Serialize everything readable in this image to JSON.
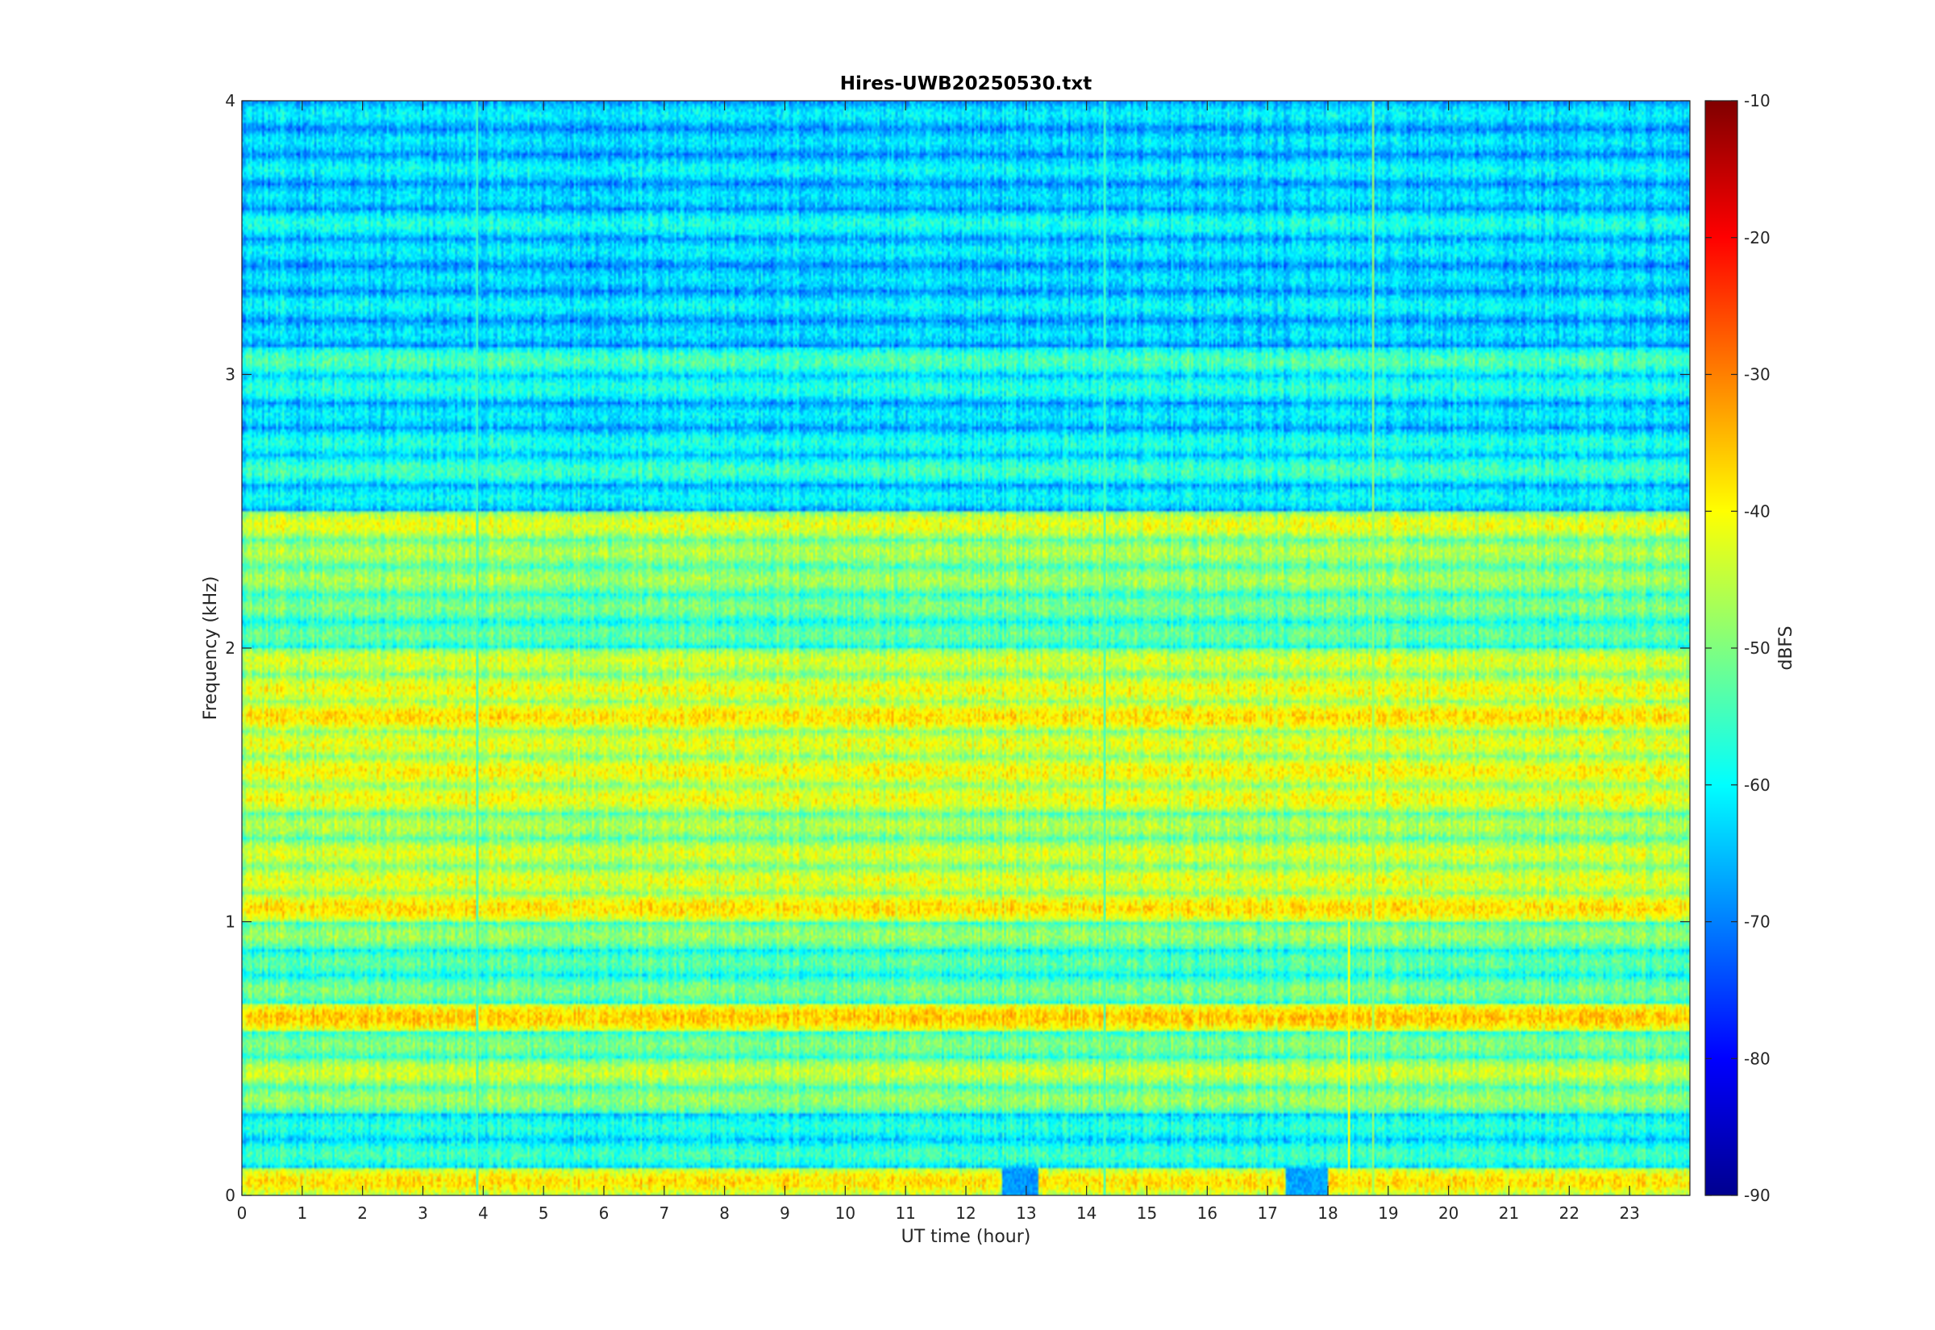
{
  "chart_data": {
    "type": "heatmap",
    "title": "Hires-UWB20250530.txt",
    "xlabel": "UT time (hour)",
    "ylabel": "Frequency (kHz)",
    "xlim": [
      0,
      24
    ],
    "ylim": [
      0,
      4
    ],
    "x_ticks": [
      "0",
      "1",
      "2",
      "3",
      "4",
      "5",
      "6",
      "7",
      "8",
      "9",
      "10",
      "11",
      "12",
      "13",
      "14",
      "15",
      "16",
      "17",
      "18",
      "19",
      "20",
      "21",
      "22",
      "23"
    ],
    "y_ticks": [
      "0",
      "1",
      "2",
      "3",
      "4"
    ],
    "colorbar": {
      "label": "dBFS",
      "range": [
        -90,
        -10
      ],
      "ticks": [
        "-10",
        "-20",
        "-30",
        "-40",
        "-50",
        "-60",
        "-70",
        "-80",
        "-90"
      ],
      "colormap": "jet"
    },
    "bands": [
      {
        "f": 0.05,
        "level": -38
      },
      {
        "f": 0.15,
        "level": -55
      },
      {
        "f": 0.25,
        "level": -57
      },
      {
        "f": 0.35,
        "level": -48
      },
      {
        "f": 0.45,
        "level": -44
      },
      {
        "f": 0.55,
        "level": -50
      },
      {
        "f": 0.65,
        "level": -36
      },
      {
        "f": 0.75,
        "level": -50
      },
      {
        "f": 0.85,
        "level": -53
      },
      {
        "f": 0.95,
        "level": -48
      },
      {
        "f": 1.05,
        "level": -38
      },
      {
        "f": 1.15,
        "level": -42
      },
      {
        "f": 1.25,
        "level": -43
      },
      {
        "f": 1.35,
        "level": -46
      },
      {
        "f": 1.45,
        "level": -41
      },
      {
        "f": 1.55,
        "level": -40
      },
      {
        "f": 1.65,
        "level": -42
      },
      {
        "f": 1.75,
        "level": -38
      },
      {
        "f": 1.85,
        "level": -41
      },
      {
        "f": 1.95,
        "level": -43
      },
      {
        "f": 2.05,
        "level": -52
      },
      {
        "f": 2.15,
        "level": -50
      },
      {
        "f": 2.25,
        "level": -47
      },
      {
        "f": 2.35,
        "level": -46
      },
      {
        "f": 2.45,
        "level": -42
      },
      {
        "f": 2.55,
        "level": -60
      },
      {
        "f": 2.65,
        "level": -55
      },
      {
        "f": 2.75,
        "level": -58
      },
      {
        "f": 2.85,
        "level": -61
      },
      {
        "f": 2.95,
        "level": -57
      },
      {
        "f": 3.05,
        "level": -54
      },
      {
        "f": 3.15,
        "level": -62
      },
      {
        "f": 3.25,
        "level": -60
      },
      {
        "f": 3.35,
        "level": -62
      },
      {
        "f": 3.45,
        "level": -61
      },
      {
        "f": 3.55,
        "level": -58
      },
      {
        "f": 3.65,
        "level": -62
      },
      {
        "f": 3.75,
        "level": -60
      },
      {
        "f": 3.85,
        "level": -62
      },
      {
        "f": 3.95,
        "level": -61
      }
    ],
    "spikes": [
      {
        "t": 18.35,
        "f_max": 1.0,
        "level": -40
      },
      {
        "t": 18.75,
        "f_max": 4.0,
        "level": -48
      },
      {
        "t": 14.3,
        "f_max": 4.0,
        "level": -55
      },
      {
        "t": 3.9,
        "f_max": 4.0,
        "level": -55
      }
    ],
    "dips": [
      {
        "t_start": 12.6,
        "t_end": 13.2,
        "f_max": 0.1,
        "level": -68
      },
      {
        "t_start": 17.3,
        "t_end": 18.0,
        "f_max": 0.1,
        "level": -67
      }
    ]
  }
}
